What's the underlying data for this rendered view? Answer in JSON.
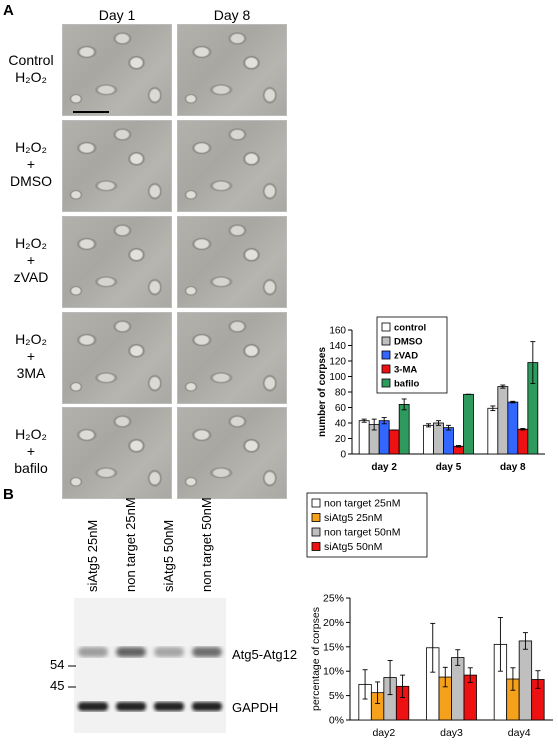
{
  "panels": {
    "a": "A",
    "b": "B"
  },
  "micrographs": {
    "columns": [
      "Day 1",
      "Day 8"
    ],
    "rows": [
      {
        "line1": "Control",
        "line2": "H₂O₂",
        "line3": ""
      },
      {
        "line1": "H₂O₂",
        "line2": "+",
        "line3": "DMSO"
      },
      {
        "line1": "H₂O₂",
        "line2": "+",
        "line3": "zVAD"
      },
      {
        "line1": "H₂O₂",
        "line2": "+",
        "line3": "3MA"
      },
      {
        "line1": "H₂O₂",
        "line2": "+",
        "line3": "bafilo"
      }
    ]
  },
  "blot": {
    "lanes": [
      "siAtg5 25nM",
      "non target 25nM",
      "siAtg5 50nM",
      "non target 50nM"
    ],
    "markers": [
      "54",
      "45"
    ],
    "bands": [
      "Atg5-Atg12",
      "GAPDH"
    ]
  },
  "chart_data": [
    {
      "type": "bar",
      "categories": [
        "day 2",
        "day 5",
        "day 8"
      ],
      "ylabel": "number of corpses",
      "ylim": [
        0,
        160
      ],
      "yticks": [
        "0",
        "20",
        "40",
        "60",
        "80",
        "100",
        "120",
        "140",
        "160"
      ],
      "legend": "top-left",
      "series": [
        {
          "name": "control",
          "color": "#ffffff",
          "values": [
            43,
            37,
            59
          ],
          "errors": [
            2,
            2,
            3
          ]
        },
        {
          "name": "DMSO",
          "color": "#bfbfbf",
          "values": [
            38,
            40,
            87
          ],
          "errors": [
            7,
            3,
            2
          ]
        },
        {
          "name": "zVAD",
          "color": "#3366ff",
          "values": [
            43,
            34,
            67
          ],
          "errors": [
            4,
            3,
            1
          ]
        },
        {
          "name": "3-MA",
          "color": "#ee1111",
          "values": [
            31,
            10,
            32
          ],
          "errors": [
            0,
            1,
            1
          ]
        },
        {
          "name": "bafilo",
          "color": "#2e9a5e",
          "values": [
            64,
            77,
            118
          ],
          "errors": [
            7,
            0,
            27
          ]
        }
      ]
    },
    {
      "type": "bar",
      "categories": [
        "day2",
        "day3",
        "day4"
      ],
      "ylabel": "percentage of corpses",
      "ylim": [
        0,
        25
      ],
      "yticks": [
        "0%",
        "5%",
        "10%",
        "15%",
        "20%",
        "25%"
      ],
      "legend": "top",
      "series": [
        {
          "name": "non target 25nM",
          "color": "#ffffff",
          "values": [
            7.3,
            14.8,
            15.5
          ],
          "errors": [
            3.0,
            5.0,
            5.5
          ]
        },
        {
          "name": "siAtg5 25nM",
          "color": "#f5a11b",
          "values": [
            5.6,
            8.8,
            8.4
          ],
          "errors": [
            2.2,
            2.0,
            2.3
          ]
        },
        {
          "name": "non target 50nM",
          "color": "#bfbfbf",
          "values": [
            8.7,
            12.8,
            16.2
          ],
          "errors": [
            3.5,
            1.6,
            1.7
          ]
        },
        {
          "name": "siAtg5 50nM",
          "color": "#ee1111",
          "values": [
            6.9,
            9.2,
            8.3
          ],
          "errors": [
            2.3,
            1.5,
            1.8
          ]
        }
      ]
    }
  ]
}
